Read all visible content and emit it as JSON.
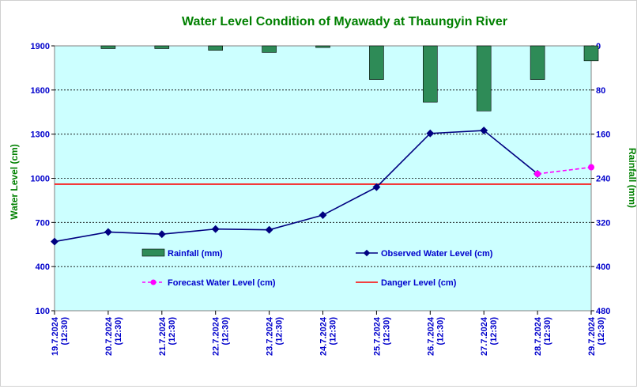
{
  "chart_data": {
    "type": "bar+line",
    "title": "Water Level Condition of  Myawady at Thaungyin River",
    "ylabel": "Water Level (cm)",
    "y2label": "Rainfall (mm)",
    "ylim": [
      100,
      1900
    ],
    "y2lim": [
      480,
      0
    ],
    "yticks": [
      "1900",
      "1600",
      "1300",
      "1000",
      "700",
      "400",
      "100"
    ],
    "y2ticks": [
      "0",
      "80",
      "160",
      "240",
      "320",
      "400",
      "480"
    ],
    "categories": [
      [
        "19.7.2024",
        "(12:30)"
      ],
      [
        "20.7.2024",
        "(12:30)"
      ],
      [
        "21.7.2024",
        "(12:30)"
      ],
      [
        "22.7.2024",
        "(12:30)"
      ],
      [
        "23.7.2024",
        "(12:30)"
      ],
      [
        "24.7.2024",
        "(12:30)"
      ],
      [
        "25.7.2024",
        "(12:30)"
      ],
      [
        "26.7.2024",
        "(12:30)"
      ],
      [
        "27.7.2024",
        "(12:30)"
      ],
      [
        "28.7.2024",
        "(12:30)"
      ],
      [
        "29.7.2024",
        "(12:30)"
      ]
    ],
    "series": [
      {
        "name": "Rainfall (mm)",
        "kind": "bar",
        "axis": "right",
        "color": "#2e8b57",
        "values": [
          null,
          5,
          5,
          8,
          12,
          3,
          61,
          102,
          118,
          61,
          27
        ]
      },
      {
        "name": "Observed Water Level (cm)",
        "kind": "line",
        "axis": "left",
        "color": "#000080",
        "values": [
          570,
          635,
          620,
          655,
          650,
          750,
          940,
          1305,
          1325,
          1030,
          null
        ]
      },
      {
        "name": "Forecast Water Level (cm)",
        "kind": "line-dashed",
        "axis": "left",
        "color": "#ff00ff",
        "values": [
          null,
          null,
          null,
          null,
          null,
          null,
          null,
          null,
          null,
          1030,
          1075
        ]
      },
      {
        "name": "Danger Level (cm)",
        "kind": "hline",
        "axis": "left",
        "color": "#ff0000",
        "value": 960
      }
    ],
    "legend": [
      {
        "name": "Rainfall (mm)",
        "kind": "bar",
        "color": "#2e8b57"
      },
      {
        "name": "Observed Water Level (cm)",
        "kind": "line",
        "color": "#000080"
      },
      {
        "name": "Forecast Water Level (cm)",
        "kind": "line-dashed",
        "color": "#ff00ff"
      },
      {
        "name": "Danger Level (cm)",
        "kind": "hline",
        "color": "#ff0000"
      }
    ],
    "legend_position": "inside-bottom",
    "grid": "horizontal-dashed",
    "plot_background": "#ccffff"
  }
}
